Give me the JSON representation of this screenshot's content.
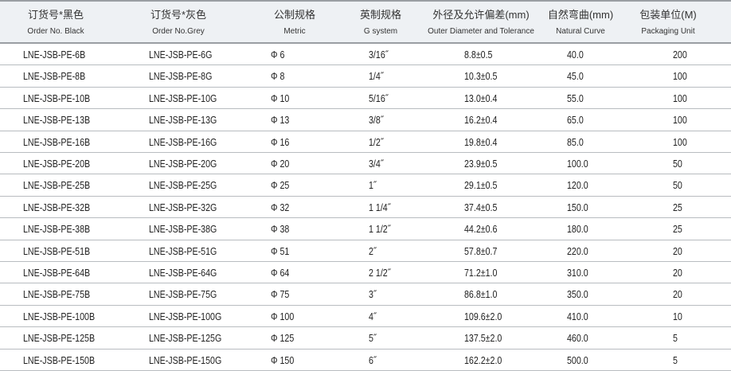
{
  "headers": [
    {
      "cn": "订货号*黑色",
      "en": "Order No. Black"
    },
    {
      "cn": "订货号*灰色",
      "en": "Order No.Grey"
    },
    {
      "cn": "公制规格",
      "en": "Metric"
    },
    {
      "cn": "英制规格",
      "en": "G system"
    },
    {
      "cn": "外径及允许偏差(mm)",
      "en": "Outer Diameter and Tolerance"
    },
    {
      "cn": "自然弯曲(mm)",
      "en": "Natural Curve"
    },
    {
      "cn": "包装单位(M)",
      "en": "Packaging Unit"
    }
  ],
  "rows": [
    [
      "LNE-JSB-PE-6B",
      "LNE-JSB-PE-6G",
      "Φ 6",
      "3/16˝",
      "8.8±0.5",
      "40.0",
      "200"
    ],
    [
      "LNE-JSB-PE-8B",
      "LNE-JSB-PE-8G",
      "Φ 8",
      "1/4˝",
      "10.3±0.5",
      "45.0",
      "100"
    ],
    [
      "LNE-JSB-PE-10B",
      "LNE-JSB-PE-10G",
      "Φ 10",
      "5/16˝",
      "13.0±0.4",
      "55.0",
      "100"
    ],
    [
      "LNE-JSB-PE-13B",
      "LNE-JSB-PE-13G",
      "Φ 13",
      "3/8˝",
      "16.2±0.4",
      "65.0",
      "100"
    ],
    [
      "LNE-JSB-PE-16B",
      "LNE-JSB-PE-16G",
      "Φ 16",
      "1/2˝",
      "19.8±0.4",
      "85.0",
      "100"
    ],
    [
      "LNE-JSB-PE-20B",
      "LNE-JSB-PE-20G",
      "Φ 20",
      "3/4˝",
      "23.9±0.5",
      "100.0",
      "50"
    ],
    [
      "LNE-JSB-PE-25B",
      "LNE-JSB-PE-25G",
      "Φ 25",
      "1˝",
      "29.1±0.5",
      "120.0",
      "50"
    ],
    [
      "LNE-JSB-PE-32B",
      "LNE-JSB-PE-32G",
      "Φ 32",
      "1 1/4˝",
      "37.4±0.5",
      "150.0",
      "25"
    ],
    [
      "LNE-JSB-PE-38B",
      "LNE-JSB-PE-38G",
      "Φ 38",
      "1 1/2˝",
      "44.2±0.6",
      "180.0",
      "25"
    ],
    [
      "LNE-JSB-PE-51B",
      "LNE-JSB-PE-51G",
      "Φ 51",
      "2˝",
      "57.8±0.7",
      "220.0",
      "20"
    ],
    [
      "LNE-JSB-PE-64B",
      "LNE-JSB-PE-64G",
      "Φ 64",
      "2 1/2˝",
      "71.2±1.0",
      "310.0",
      "20"
    ],
    [
      "LNE-JSB-PE-75B",
      "LNE-JSB-PE-75G",
      "Φ 75",
      "3˝",
      "86.8±1.0",
      "350.0",
      "20"
    ],
    [
      "LNE-JSB-PE-100B",
      "LNE-JSB-PE-100G",
      "Φ 100",
      "4˝",
      "109.6±2.0",
      "410.0",
      "10"
    ],
    [
      "LNE-JSB-PE-125B",
      "LNE-JSB-PE-125G",
      "Φ 125",
      "5˝",
      "137.5±2.0",
      "460.0",
      "5"
    ],
    [
      "LNE-JSB-PE-150B",
      "LNE-JSB-PE-150G",
      "Φ 150",
      "6˝",
      "162.2±2.0",
      "500.0",
      "5"
    ]
  ]
}
